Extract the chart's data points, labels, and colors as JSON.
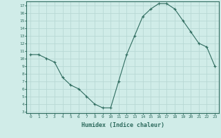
{
  "x": [
    0,
    1,
    2,
    3,
    4,
    5,
    6,
    7,
    8,
    9,
    10,
    11,
    12,
    13,
    14,
    15,
    16,
    17,
    18,
    19,
    20,
    21,
    22,
    23
  ],
  "y": [
    10.5,
    10.5,
    10.0,
    9.5,
    7.5,
    6.5,
    6.0,
    5.0,
    4.0,
    3.5,
    3.5,
    7.0,
    10.5,
    13.0,
    15.5,
    16.5,
    17.2,
    17.2,
    16.5,
    15.0,
    13.5,
    12.0,
    11.5,
    9.0
  ],
  "xlabel": "Humidex (Indice chaleur)",
  "line_color": "#2e6b5e",
  "marker": "+",
  "bg_color": "#d0ece8",
  "grid_color": "#b8d8d4",
  "axis_color": "#2e6b5e",
  "tick_color": "#2e6b5e",
  "ylim": [
    2.8,
    17.5
  ],
  "xlim": [
    -0.5,
    23.5
  ],
  "yticks": [
    3,
    4,
    5,
    6,
    7,
    8,
    9,
    10,
    11,
    12,
    13,
    14,
    15,
    16,
    17
  ],
  "xticks": [
    0,
    1,
    2,
    3,
    4,
    5,
    6,
    7,
    8,
    9,
    10,
    11,
    12,
    13,
    14,
    15,
    16,
    17,
    18,
    19,
    20,
    21,
    22,
    23
  ]
}
